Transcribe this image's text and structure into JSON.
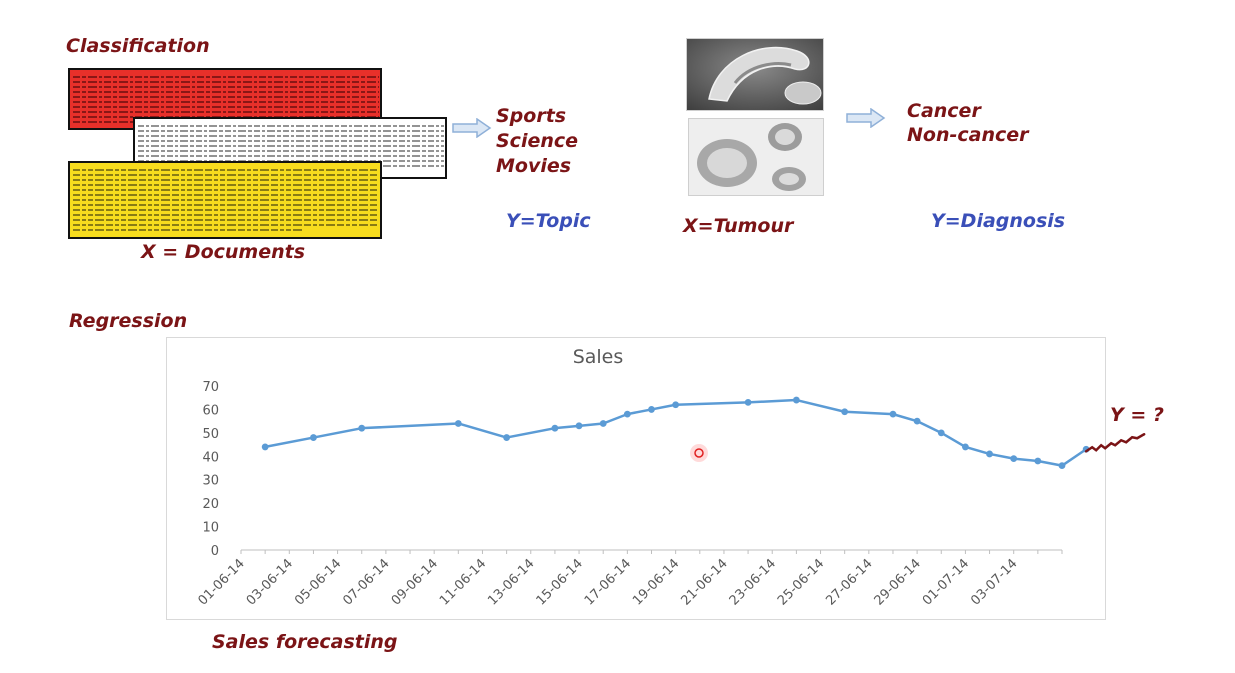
{
  "classification": {
    "title": "Classification",
    "x_label": "X = Documents",
    "topics": [
      "Sports",
      "Science",
      "Movies"
    ],
    "y_label": "Y=Topic",
    "tumour_label": "X=Tumour",
    "diagnoses": [
      "Cancer",
      "Non-cancer"
    ],
    "diagnosis_label": "Y=Diagnosis"
  },
  "regression": {
    "title": "Regression",
    "caption": "Sales forecasting",
    "forecast_label": "Y = ?"
  },
  "colors": {
    "maroon": "#7b1416",
    "blue": "#3a4fb8",
    "line": "#5b9bd5",
    "doc_red": "#e8302a",
    "doc_yellow": "#f7dc1e"
  },
  "chart_data": {
    "type": "line",
    "title": "Sales",
    "xlabel": "",
    "ylabel": "",
    "ylim": [
      0,
      70
    ],
    "y_ticks": [
      0,
      10,
      20,
      30,
      40,
      50,
      60,
      70
    ],
    "x_tick_labels": [
      "01-06-14",
      "03-06-14",
      "05-06-14",
      "07-06-14",
      "09-06-14",
      "11-06-14",
      "13-06-14",
      "15-06-14",
      "17-06-14",
      "19-06-14",
      "21-06-14",
      "23-06-14",
      "25-06-14",
      "27-06-14",
      "29-06-14",
      "01-07-14",
      "03-07-14"
    ],
    "x_range": [
      "2014-06-01",
      "2014-07-05"
    ],
    "grid": false,
    "legend": "none",
    "series": [
      {
        "points": [
          {
            "x": "2014-06-02",
            "y": 44
          },
          {
            "x": "2014-06-04",
            "y": 48
          },
          {
            "x": "2014-06-06",
            "y": 52
          },
          {
            "x": "2014-06-10",
            "y": 54
          },
          {
            "x": "2014-06-12",
            "y": 48
          },
          {
            "x": "2014-06-14",
            "y": 52
          },
          {
            "x": "2014-06-15",
            "y": 53
          },
          {
            "x": "2014-06-16",
            "y": 54
          },
          {
            "x": "2014-06-17",
            "y": 58
          },
          {
            "x": "2014-06-18",
            "y": 60
          },
          {
            "x": "2014-06-19",
            "y": 62
          },
          {
            "x": "2014-06-22",
            "y": 63
          },
          {
            "x": "2014-06-24",
            "y": 64
          },
          {
            "x": "2014-06-26",
            "y": 59
          },
          {
            "x": "2014-06-28",
            "y": 58
          },
          {
            "x": "2014-06-29",
            "y": 55
          },
          {
            "x": "2014-06-30",
            "y": 50
          },
          {
            "x": "2014-07-01",
            "y": 44
          },
          {
            "x": "2014-07-02",
            "y": 41
          },
          {
            "x": "2014-07-03",
            "y": 39
          },
          {
            "x": "2014-07-04",
            "y": 38
          },
          {
            "x": "2014-07-05",
            "y": 36
          },
          {
            "x": "2014-07-06",
            "y": 43
          }
        ]
      }
    ]
  }
}
